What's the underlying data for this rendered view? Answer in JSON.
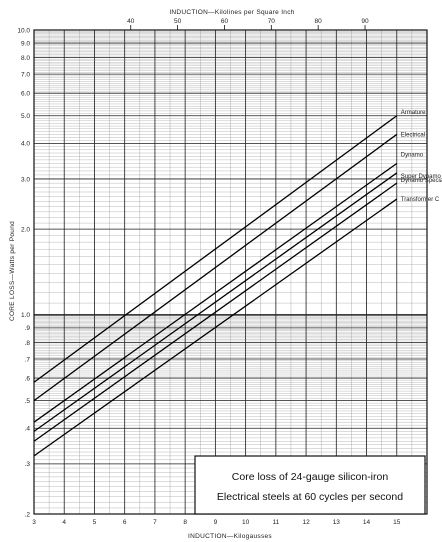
{
  "chart_data": {
    "type": "line",
    "title": "Core loss of 24-gauge silicon-iron Electrical steels at 60 cycles per second",
    "caption_lines": [
      "Core loss of 24-gauge silicon-iron",
      "Electrical steels at 60 cycles per second"
    ],
    "xlabel": "INDUCTION—Kilogausses",
    "x2label": "INDUCTION—Kilolines per Square Inch",
    "ylabel": "CORE LOSS—Watts per Pound",
    "x_scale": "linear",
    "y_scale": "log",
    "xlim": [
      3,
      16
    ],
    "ylim": [
      0.2,
      10
    ],
    "x_ticks": [
      3,
      4,
      5,
      6,
      7,
      8,
      9,
      10,
      11,
      12,
      13,
      14,
      15
    ],
    "x_tick_labels": [
      "3",
      "4",
      "5",
      "6",
      "7",
      "8",
      "9",
      "10",
      "11",
      "12",
      "13",
      "14",
      "15"
    ],
    "x2_ticks": [
      40,
      50,
      60,
      70,
      80,
      90
    ],
    "x2_tick_labels": [
      "40",
      "50",
      "60",
      "70",
      "80",
      "90"
    ],
    "y_ticks": [
      0.2,
      0.3,
      0.4,
      0.5,
      0.6,
      0.7,
      0.8,
      0.9,
      1.0,
      2.0,
      3.0,
      4.0,
      5.0,
      6.0,
      7.0,
      8.0,
      9.0,
      10.0
    ],
    "y_tick_labels": [
      ".2",
      ".3",
      ".4",
      ".5",
      ".6",
      ".7",
      ".8",
      ".9",
      "1.0",
      "2.0",
      "3.0",
      "4.0",
      "5.0",
      "6.0",
      "7.0",
      "8.0",
      "9.0",
      "10.0"
    ],
    "grid": true,
    "series": [
      {
        "name": "Armature",
        "x": [
          3,
          15
        ],
        "y": [
          0.58,
          5.0
        ]
      },
      {
        "name": "Electrical",
        "x": [
          3,
          15
        ],
        "y": [
          0.5,
          4.3
        ]
      },
      {
        "name": "Dynamo",
        "x": [
          3,
          15
        ],
        "y": [
          0.42,
          3.4
        ]
      },
      {
        "name": "Super Dynamo",
        "x": [
          3,
          15
        ],
        "y": [
          0.39,
          3.15
        ]
      },
      {
        "name": "Dynamo Special",
        "x": [
          3,
          15
        ],
        "y": [
          0.36,
          2.9
        ]
      },
      {
        "name": "Transformer C",
        "x": [
          3,
          15
        ],
        "y": [
          0.32,
          2.55
        ]
      }
    ]
  }
}
